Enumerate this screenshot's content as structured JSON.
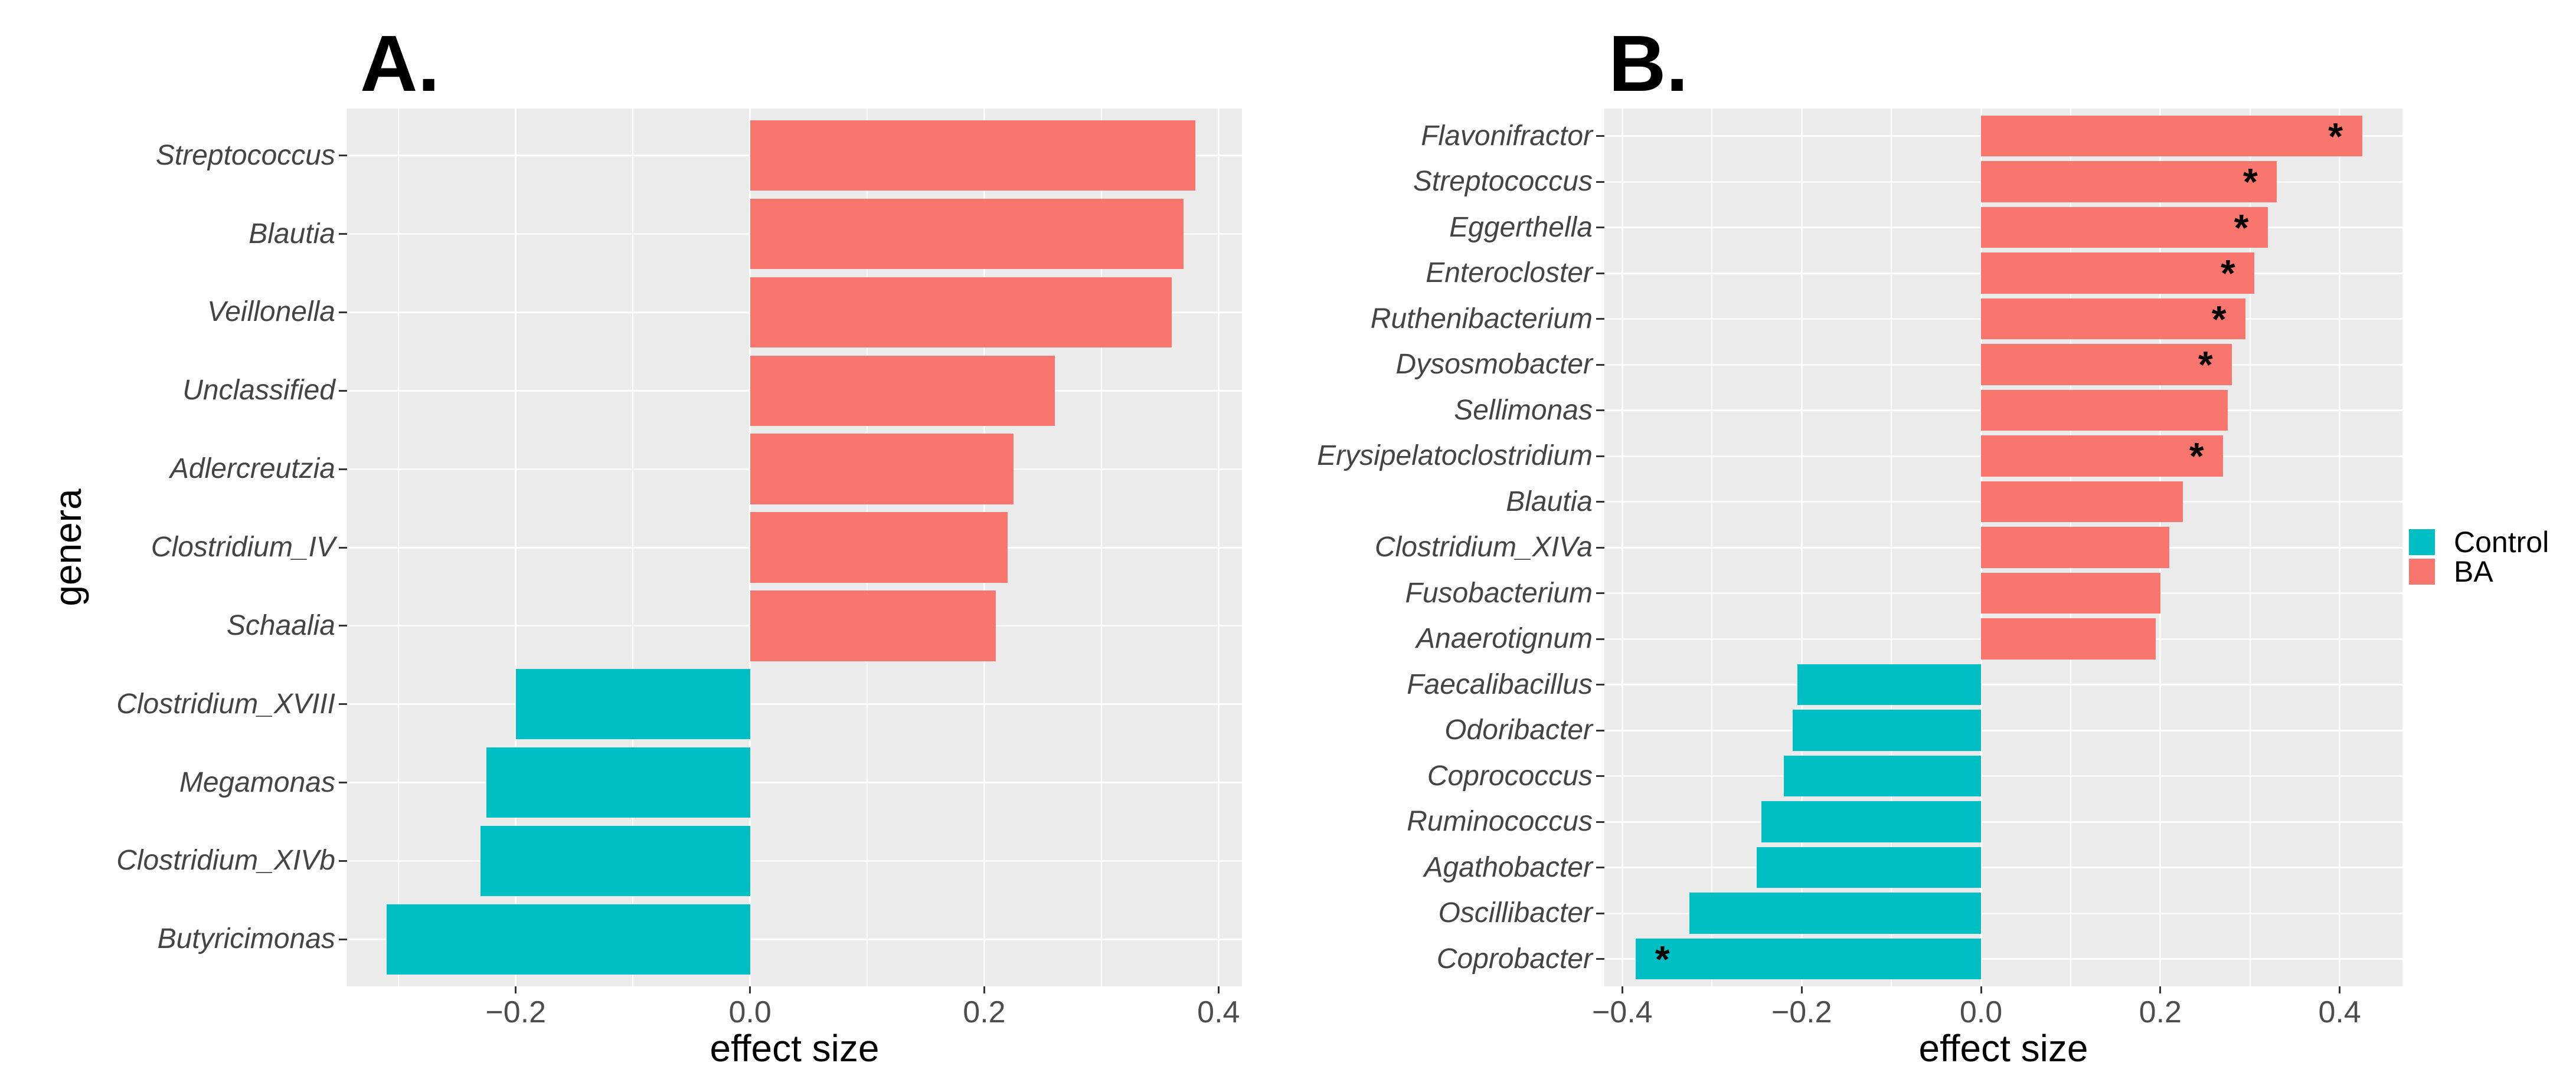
{
  "figure_type": "two-panel horizontal bar chart (effect sizes of bacterial genera)",
  "colors": {
    "ba_positive": "#F8766D",
    "control_negative": "#00BFC4",
    "panel_background": "#EBEBEB",
    "gridline": "#FFFFFF",
    "axis_text": "#4D4D4D",
    "category_text": "#444444",
    "tick_mark": "#333333",
    "title_text": "#000000"
  },
  "legend": {
    "position": "right",
    "items": [
      {
        "label": "Control",
        "color": "#00BFC4"
      },
      {
        "label": "BA",
        "color": "#F8766D"
      }
    ]
  },
  "chart_data": [
    {
      "type": "bar",
      "orientation": "horizontal",
      "title": "A.",
      "xlabel": "effect size",
      "ylabel": "genera",
      "xlim": [
        -0.344,
        0.42
      ],
      "xticks": [
        -0.2,
        0.0,
        0.2,
        0.4
      ],
      "grid": true,
      "legend_position": "right",
      "bars": [
        {
          "category": "Streptococcus",
          "value": 0.38,
          "group": "BA",
          "significant": false
        },
        {
          "category": "Blautia",
          "value": 0.37,
          "group": "BA",
          "significant": false
        },
        {
          "category": "Veillonella",
          "value": 0.36,
          "group": "BA",
          "significant": false
        },
        {
          "category": "Unclassified",
          "value": 0.26,
          "group": "BA",
          "significant": false
        },
        {
          "category": "Adlercreutzia",
          "value": 0.225,
          "group": "BA",
          "significant": false
        },
        {
          "category": "Clostridium_IV",
          "value": 0.22,
          "group": "BA",
          "significant": false
        },
        {
          "category": "Schaalia",
          "value": 0.21,
          "group": "BA",
          "significant": false
        },
        {
          "category": "Clostridium_XVIII",
          "value": -0.2,
          "group": "Control",
          "significant": false
        },
        {
          "category": "Megamonas",
          "value": -0.225,
          "group": "Control",
          "significant": false
        },
        {
          "category": "Clostridium_XIVb",
          "value": -0.23,
          "group": "Control",
          "significant": false
        },
        {
          "category": "Butyricimonas",
          "value": -0.31,
          "group": "Control",
          "significant": false
        }
      ]
    },
    {
      "type": "bar",
      "orientation": "horizontal",
      "title": "B.",
      "xlabel": "effect size",
      "ylabel": "",
      "xlim": [
        -0.42,
        0.47
      ],
      "xticks": [
        -0.4,
        -0.2,
        0.0,
        0.2,
        0.4
      ],
      "grid": true,
      "legend_position": "right",
      "bars": [
        {
          "category": "Flavonifractor",
          "value": 0.425,
          "group": "BA",
          "significant": true
        },
        {
          "category": "Streptococcus",
          "value": 0.33,
          "group": "BA",
          "significant": true
        },
        {
          "category": "Eggerthella",
          "value": 0.32,
          "group": "BA",
          "significant": true
        },
        {
          "category": "Enterocloster",
          "value": 0.305,
          "group": "BA",
          "significant": true
        },
        {
          "category": "Ruthenibacterium",
          "value": 0.295,
          "group": "BA",
          "significant": true
        },
        {
          "category": "Dysosmobacter",
          "value": 0.28,
          "group": "BA",
          "significant": true
        },
        {
          "category": "Sellimonas",
          "value": 0.275,
          "group": "BA",
          "significant": false
        },
        {
          "category": "Erysipelatoclostridium",
          "value": 0.27,
          "group": "BA",
          "significant": true
        },
        {
          "category": "Blautia",
          "value": 0.225,
          "group": "BA",
          "significant": false
        },
        {
          "category": "Clostridium_XIVa",
          "value": 0.21,
          "group": "BA",
          "significant": false
        },
        {
          "category": "Fusobacterium",
          "value": 0.2,
          "group": "BA",
          "significant": false
        },
        {
          "category": "Anaerotignum",
          "value": 0.195,
          "group": "BA",
          "significant": false
        },
        {
          "category": "Faecalibacillus",
          "value": -0.205,
          "group": "Control",
          "significant": false
        },
        {
          "category": "Odoribacter",
          "value": -0.21,
          "group": "Control",
          "significant": false
        },
        {
          "category": "Coprococcus",
          "value": -0.22,
          "group": "Control",
          "significant": false
        },
        {
          "category": "Ruminococcus",
          "value": -0.245,
          "group": "Control",
          "significant": false
        },
        {
          "category": "Agathobacter",
          "value": -0.25,
          "group": "Control",
          "significant": false
        },
        {
          "category": "Oscillibacter",
          "value": -0.325,
          "group": "Control",
          "significant": false
        },
        {
          "category": "Coprobacter",
          "value": -0.385,
          "group": "Control",
          "significant": true
        }
      ]
    }
  ],
  "annotations": {
    "significance_marker": "*"
  }
}
